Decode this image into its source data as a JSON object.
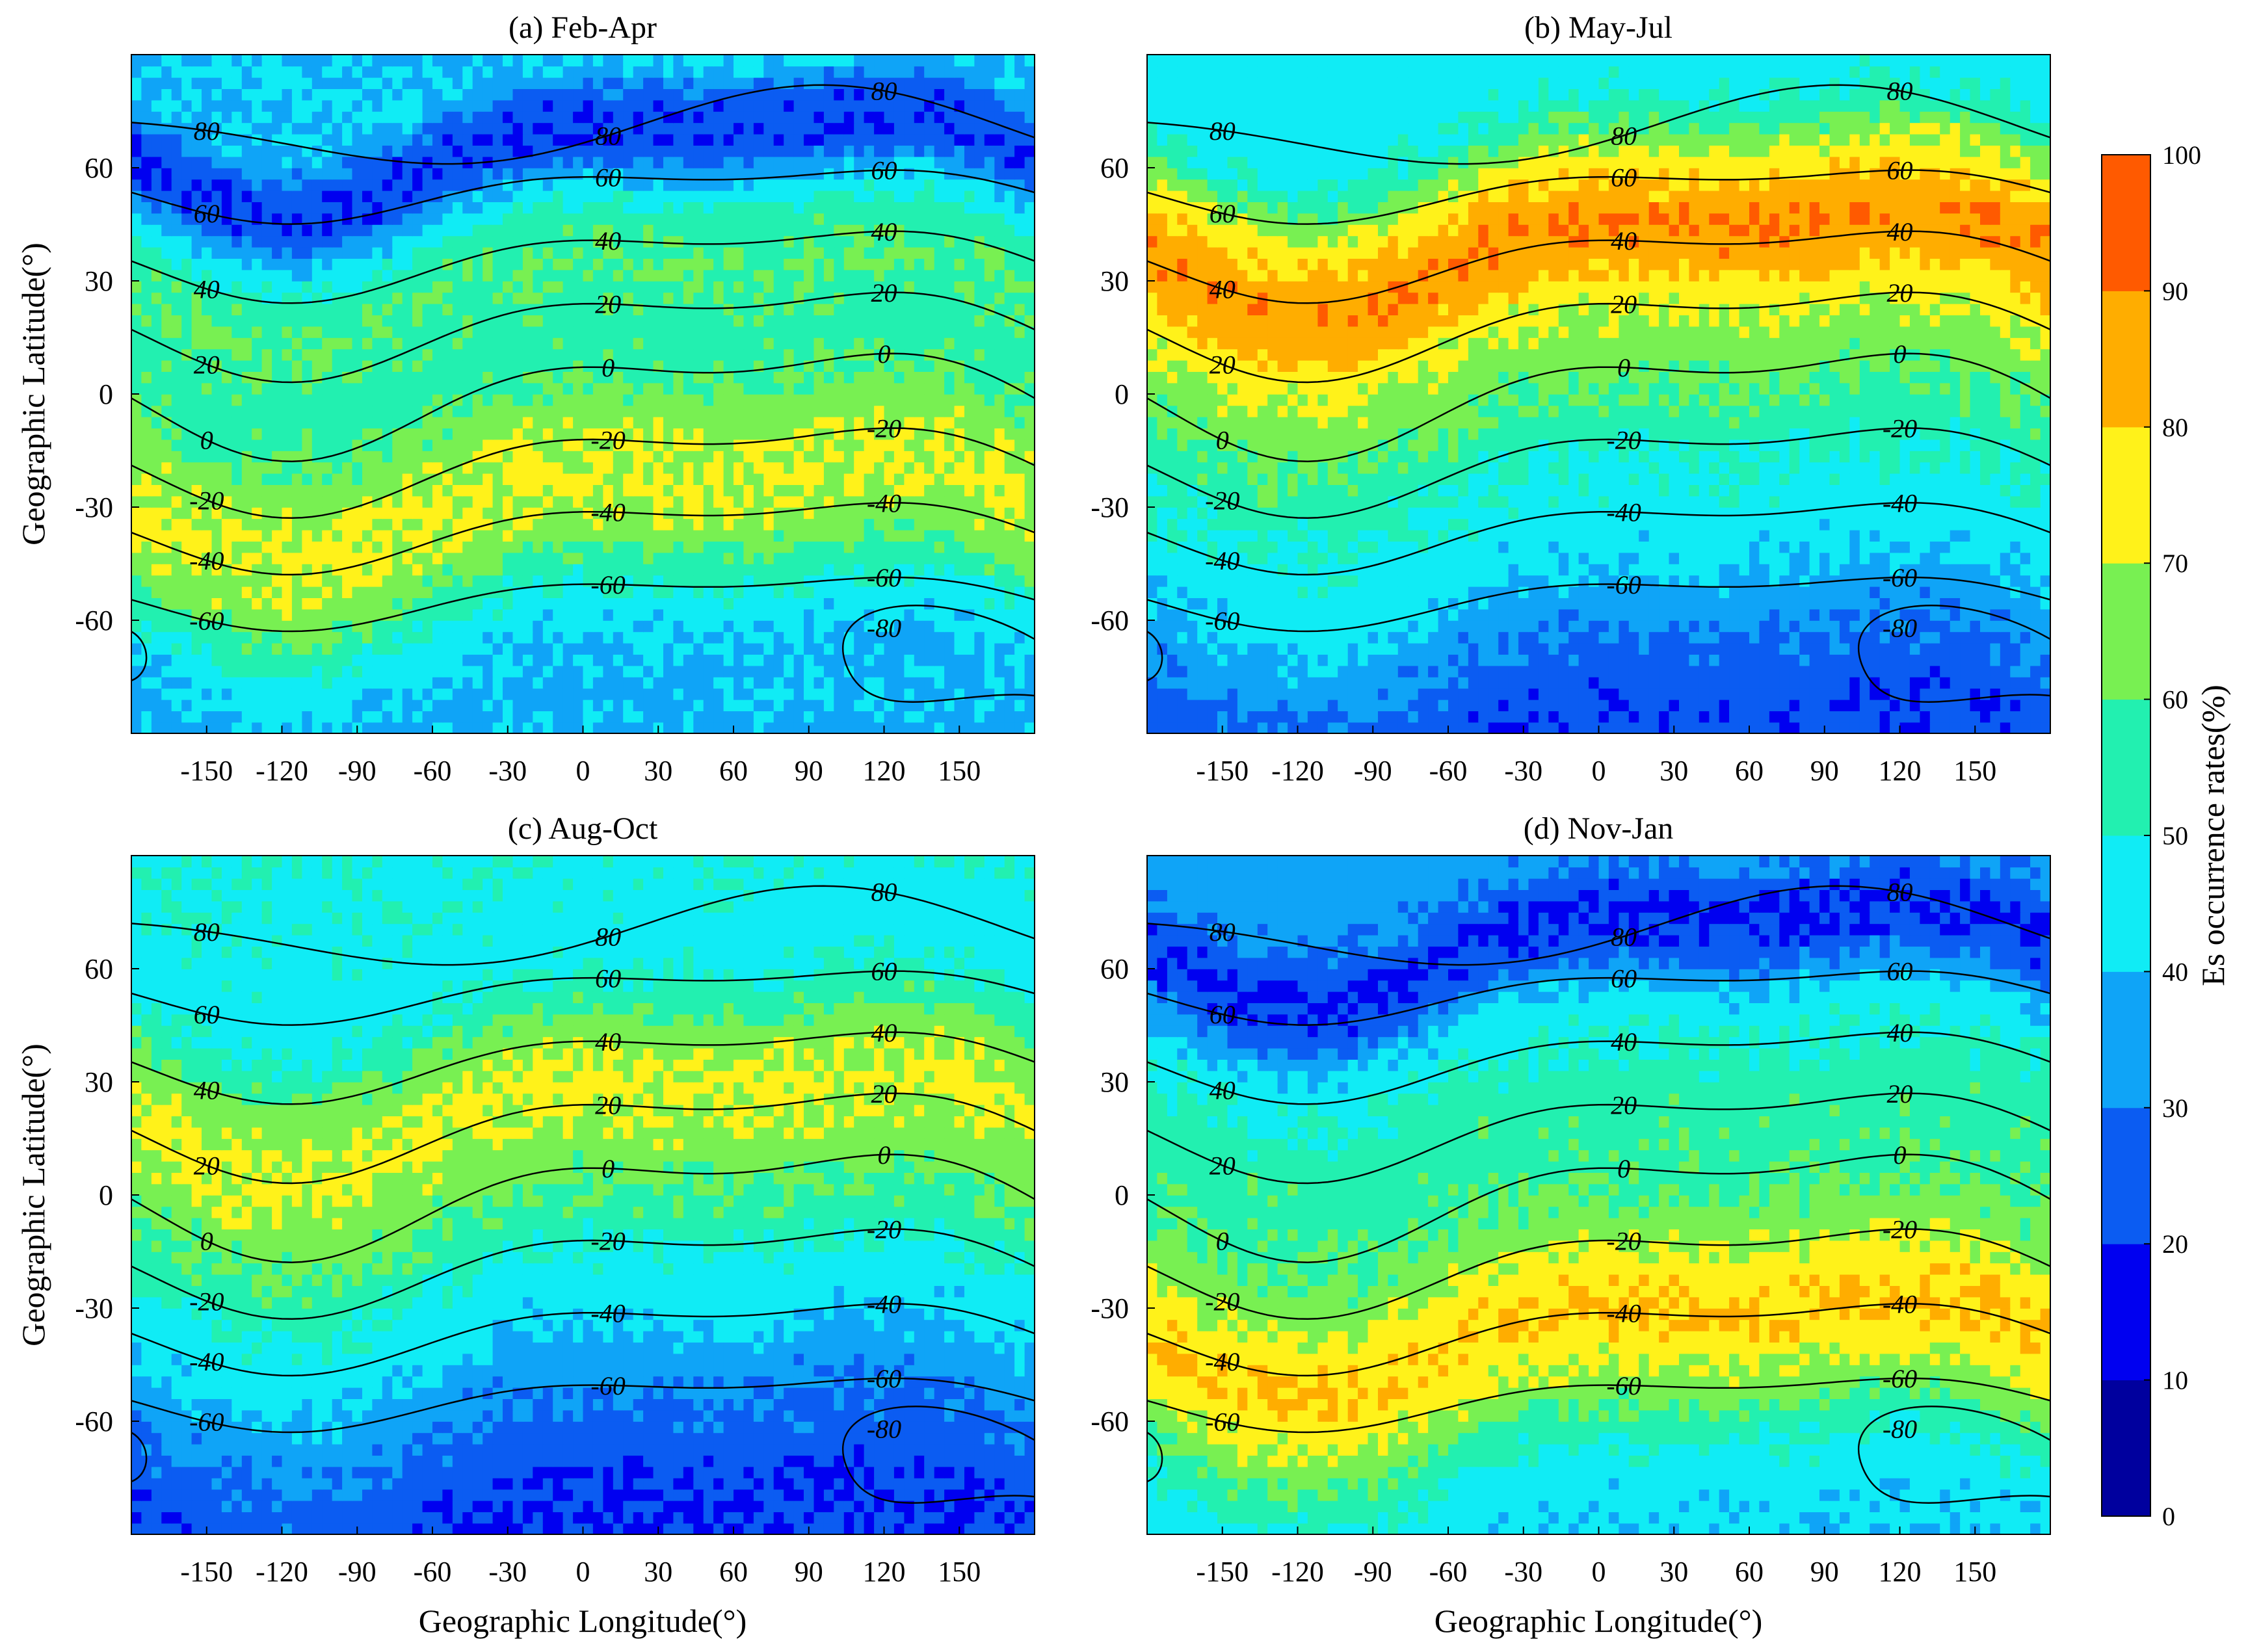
{
  "figure": {
    "colorbar": {
      "label": "Es occurrence rates(%)",
      "ticks": [
        0,
        10,
        20,
        30,
        40,
        50,
        60,
        70,
        80,
        90,
        100
      ],
      "colors": [
        "#00009e",
        "#0000f0",
        "#0b5cf2",
        "#0fa4f7",
        "#10ecf5",
        "#22f0b0",
        "#78f052",
        "#fff21a",
        "#ffad00",
        "#ff5a00"
      ]
    },
    "contour_line_color": "#000000"
  },
  "chart_data": [
    {
      "type": "heatmap",
      "title": "(a) Feb-Apr",
      "xlabel": "",
      "ylabel": "Geographic Latitude(°)",
      "xlim": [
        -180,
        180
      ],
      "ylim": [
        -90,
        90
      ],
      "xticks": [
        -150,
        -120,
        -90,
        -60,
        -30,
        0,
        30,
        60,
        90,
        120,
        150
      ],
      "yticks": [
        -60,
        -30,
        0,
        30,
        60
      ],
      "colorbar_label": "Es occurrence rates(%)",
      "latitude_profile": [
        [
          -90,
          38
        ],
        [
          -80,
          38
        ],
        [
          -70,
          40
        ],
        [
          -60,
          47
        ],
        [
          -50,
          58
        ],
        [
          -40,
          68
        ],
        [
          -30,
          72
        ],
        [
          -20,
          70
        ],
        [
          -10,
          65
        ],
        [
          0,
          58
        ],
        [
          10,
          55
        ],
        [
          20,
          58
        ],
        [
          30,
          60
        ],
        [
          40,
          55
        ],
        [
          50,
          40
        ],
        [
          60,
          20
        ],
        [
          70,
          22
        ],
        [
          80,
          40
        ],
        [
          90,
          40
        ]
      ],
      "contours": [
        "-80",
        "-60",
        "-40",
        "-20",
        "0",
        "20",
        "40",
        "60",
        "80"
      ]
    },
    {
      "type": "heatmap",
      "title": "(b) May-Jul",
      "xlabel": "",
      "ylabel": "",
      "xlim": [
        -180,
        180
      ],
      "ylim": [
        -90,
        90
      ],
      "xticks": [
        -150,
        -120,
        -90,
        -60,
        -30,
        0,
        30,
        60,
        90,
        120,
        150
      ],
      "yticks": [
        -60,
        -30,
        0,
        30,
        60
      ],
      "colorbar_label": "Es occurrence rates(%)",
      "latitude_profile": [
        [
          -90,
          22
        ],
        [
          -80,
          25
        ],
        [
          -70,
          30
        ],
        [
          -60,
          35
        ],
        [
          -50,
          42
        ],
        [
          -40,
          45
        ],
        [
          -30,
          48
        ],
        [
          -20,
          52
        ],
        [
          -10,
          58
        ],
        [
          0,
          62
        ],
        [
          10,
          68
        ],
        [
          20,
          74
        ],
        [
          30,
          85
        ],
        [
          40,
          90
        ],
        [
          50,
          80
        ],
        [
          60,
          68
        ],
        [
          70,
          52
        ],
        [
          80,
          45
        ],
        [
          90,
          45
        ]
      ],
      "contours": [
        "-80",
        "-60",
        "-40",
        "-20",
        "0",
        "20",
        "40",
        "60",
        "80"
      ]
    },
    {
      "type": "heatmap",
      "title": "(c) Aug-Oct",
      "xlabel": "Geographic Longitude(°)",
      "ylabel": "Geographic Latitude(°)",
      "xlim": [
        -180,
        180
      ],
      "ylim": [
        -90,
        90
      ],
      "xticks": [
        -150,
        -120,
        -90,
        -60,
        -30,
        0,
        30,
        60,
        90,
        120,
        150
      ],
      "yticks": [
        -60,
        -30,
        0,
        30,
        60
      ],
      "colorbar_label": "Es occurrence rates(%)",
      "latitude_profile": [
        [
          -90,
          20
        ],
        [
          -80,
          22
        ],
        [
          -70,
          26
        ],
        [
          -60,
          30
        ],
        [
          -50,
          35
        ],
        [
          -40,
          42
        ],
        [
          -30,
          45
        ],
        [
          -20,
          50
        ],
        [
          -10,
          58
        ],
        [
          0,
          62
        ],
        [
          10,
          68
        ],
        [
          20,
          72
        ],
        [
          30,
          70
        ],
        [
          40,
          62
        ],
        [
          50,
          52
        ],
        [
          60,
          45
        ],
        [
          70,
          46
        ],
        [
          80,
          48
        ],
        [
          90,
          48
        ]
      ],
      "contours": [
        "-80",
        "-60",
        "-40",
        "-20",
        "0",
        "20",
        "40",
        "60",
        "80"
      ]
    },
    {
      "type": "heatmap",
      "title": "(d) Nov-Jan",
      "xlabel": "Geographic Longitude(°)",
      "ylabel": "",
      "xlim": [
        -180,
        180
      ],
      "ylim": [
        -90,
        90
      ],
      "xticks": [
        -150,
        -120,
        -90,
        -60,
        -30,
        0,
        30,
        60,
        90,
        120,
        150
      ],
      "yticks": [
        -60,
        -30,
        0,
        30,
        60
      ],
      "colorbar_label": "Es occurrence rates(%)",
      "latitude_profile": [
        [
          -90,
          42
        ],
        [
          -80,
          45
        ],
        [
          -70,
          52
        ],
        [
          -60,
          62
        ],
        [
          -50,
          72
        ],
        [
          -40,
          80
        ],
        [
          -30,
          78
        ],
        [
          -20,
          70
        ],
        [
          -10,
          62
        ],
        [
          0,
          58
        ],
        [
          10,
          56
        ],
        [
          20,
          56
        ],
        [
          30,
          52
        ],
        [
          40,
          48
        ],
        [
          50,
          38
        ],
        [
          60,
          22
        ],
        [
          70,
          18
        ],
        [
          80,
          30
        ],
        [
          90,
          35
        ]
      ],
      "contours": [
        "-80",
        "-60",
        "-40",
        "-20",
        "0",
        "20",
        "40",
        "60",
        "80"
      ]
    }
  ]
}
